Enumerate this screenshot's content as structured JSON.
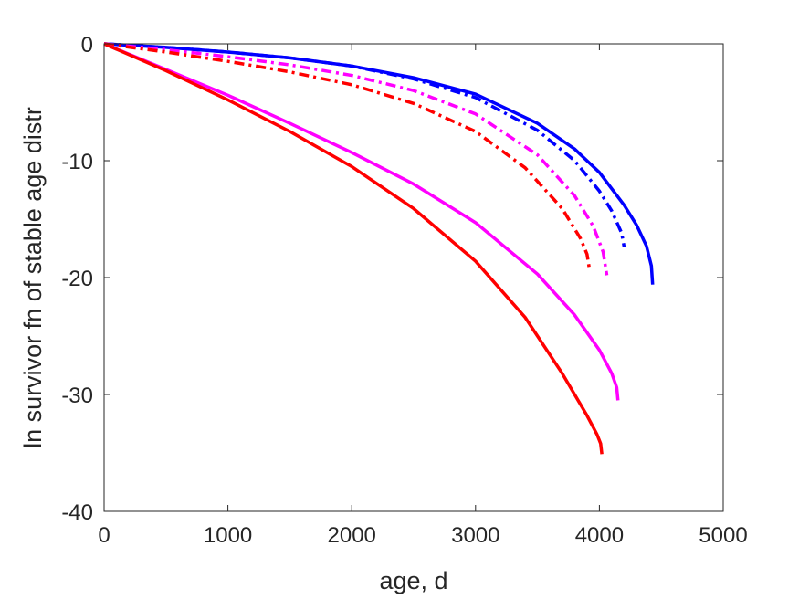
{
  "chart_data": {
    "type": "line",
    "xlabel": "age, d",
    "ylabel": "ln survivor fn of stable age distr",
    "xlim": [
      0,
      5000
    ],
    "ylim": [
      -40,
      0
    ],
    "xticks": [
      0,
      1000,
      2000,
      3000,
      4000,
      5000
    ],
    "yticks": [
      0,
      -10,
      -20,
      -30,
      -40
    ],
    "xtick_labels": [
      "0",
      "1000",
      "2000",
      "3000",
      "4000",
      "5000"
    ],
    "ytick_labels": [
      "0",
      "-10",
      "-20",
      "-30",
      "-40"
    ],
    "grid": false,
    "legend": "none",
    "series": [
      {
        "color": "#0000ff",
        "style": "solid",
        "x": [
          0,
          500,
          1000,
          1500,
          2000,
          2500,
          3000,
          3500,
          3800,
          4000,
          4200,
          4300,
          4380,
          4420,
          4430
        ],
        "y": [
          0,
          -0.3,
          -0.7,
          -1.2,
          -1.9,
          -2.9,
          -4.3,
          -6.8,
          -9.0,
          -11.0,
          -13.8,
          -15.5,
          -17.3,
          -19.0,
          -20.6
        ]
      },
      {
        "color": "#0000ff",
        "style": "dashdot",
        "x": [
          0,
          500,
          1000,
          1500,
          2000,
          2500,
          3000,
          3500,
          3800,
          4000,
          4100,
          4180,
          4200
        ],
        "y": [
          0,
          -0.3,
          -0.7,
          -1.2,
          -1.9,
          -3.0,
          -4.6,
          -7.4,
          -10.0,
          -12.6,
          -14.3,
          -16.2,
          -17.4
        ]
      },
      {
        "color": "#ff00ff",
        "style": "dashdot",
        "x": [
          0,
          500,
          1000,
          1500,
          2000,
          2500,
          3000,
          3500,
          3800,
          3950,
          4030,
          4060
        ],
        "y": [
          0,
          -0.5,
          -1.1,
          -1.8,
          -2.7,
          -4.0,
          -6.0,
          -9.5,
          -13.0,
          -15.6,
          -17.8,
          -19.8
        ]
      },
      {
        "color": "#ff0000",
        "style": "dashdot",
        "x": [
          0,
          500,
          1000,
          1500,
          2000,
          2500,
          3000,
          3400,
          3700,
          3850,
          3900,
          3920
        ],
        "y": [
          0,
          -0.7,
          -1.5,
          -2.4,
          -3.5,
          -5.1,
          -7.5,
          -10.6,
          -14.1,
          -16.7,
          -18.0,
          -19.3
        ]
      },
      {
        "color": "#ff00ff",
        "style": "solid",
        "x": [
          0,
          500,
          1000,
          1500,
          2000,
          2500,
          3000,
          3500,
          3800,
          4000,
          4100,
          4140,
          4150
        ],
        "y": [
          0,
          -2.2,
          -4.4,
          -6.8,
          -9.3,
          -12.0,
          -15.3,
          -19.7,
          -23.2,
          -26.2,
          -28.2,
          -29.4,
          -30.5
        ]
      },
      {
        "color": "#ff0000",
        "style": "solid",
        "x": [
          0,
          500,
          1000,
          1500,
          2000,
          2500,
          3000,
          3400,
          3700,
          3900,
          3980,
          4010,
          4020
        ],
        "y": [
          0,
          -2.3,
          -4.8,
          -7.5,
          -10.5,
          -14.1,
          -18.6,
          -23.4,
          -28.2,
          -31.8,
          -33.4,
          -34.2,
          -35.1
        ]
      }
    ]
  }
}
